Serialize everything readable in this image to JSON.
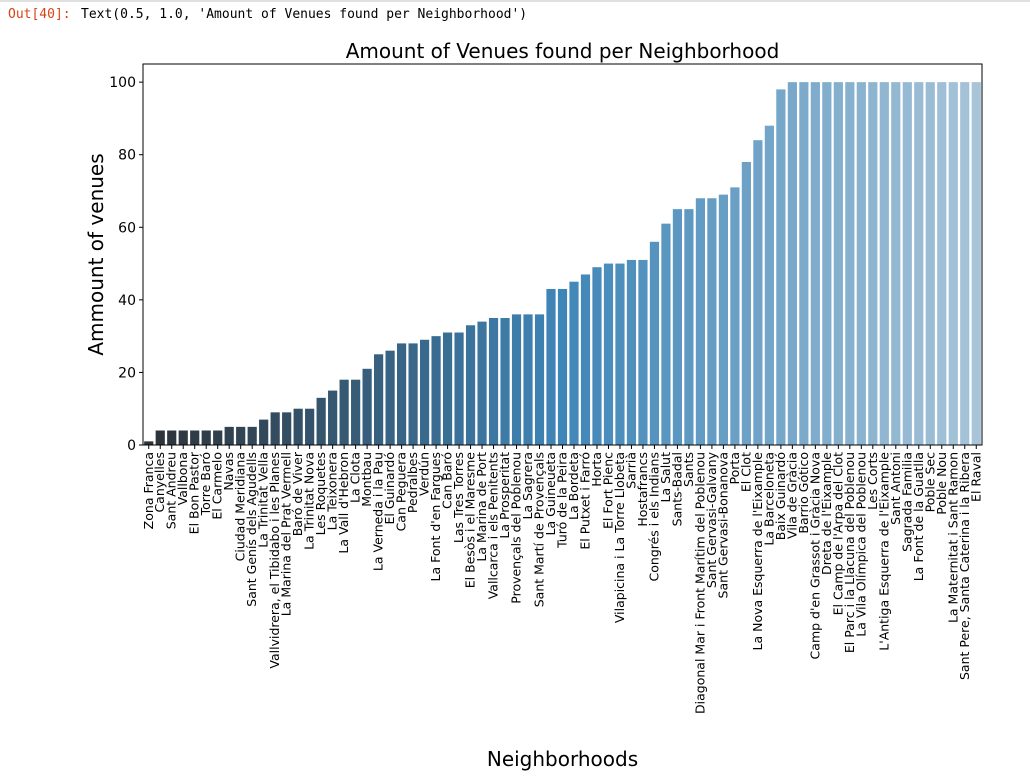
{
  "cell": {
    "prompt": "Out[40]:",
    "output_text": "Text(0.5, 1.0, 'Amount of Venues found per Neighborhood')"
  },
  "chart_data": {
    "type": "bar",
    "title": "Amount of Venues found per Neighborhood",
    "xlabel": "Neighborhoods",
    "ylabel": "Ammount of venues",
    "ylim": [
      0,
      105
    ],
    "yticks": [
      0,
      20,
      40,
      60,
      80,
      100
    ],
    "grid": false,
    "palette_start": "#2d3238",
    "palette_mid": "#3f86b8",
    "palette_end": "#a7c4d8",
    "categories": [
      "Zona Franca",
      "Canyelles",
      "Sant Andreu",
      "Vallbona",
      "El Bon Pastor",
      "Torre Baró",
      "El Carmelo",
      "Navas",
      "Ciudad Meridiana",
      "Sant Genís dels Agudells",
      "La Trinitat Vella",
      "Vallvidrera, el Tibidabo i les Planes",
      "La Marina del Prat Vermell",
      "Baró de Viver",
      "La Trinitat Nova",
      "Les Roquetes",
      "La Teixonera",
      "La Vall d'Hebron",
      "La Clota",
      "Montbau",
      "La Verneda i la Pau",
      "El Guinardó",
      "Can Peguera",
      "Pedralbes",
      "Verdún",
      "La Font d'en Fargues",
      "Can Baró",
      "Las Tres Torres",
      "El Besòs i el Maresme",
      "La Marina de Port",
      "Vallcarca i els Penitents",
      "La Prosperitat",
      "Provençals del Poblenou",
      "La Sagrera",
      "Sant Martí de Provençals",
      "La Guineueta",
      "Turó de la Peira",
      "La Bordeta",
      "El Putxet i Farró",
      "Horta",
      "El Fort Pienc",
      "Vilapicina i La Torre Llobeta",
      "Sarrià",
      "Hostafrancs",
      "Congrés i els Indians",
      "La Salut",
      "Sants-Badal",
      "Sants",
      "Diagonal Mar i Front Marítim del Poblenou",
      "Sant Gervasi-Galvany",
      "Sant Gervasi-Bonanova",
      "Porta",
      "El Clot",
      "La Nova Esquerra de l'Eixample",
      "La Barceloneta",
      "Baix Guinardó",
      "Vila de Gràcia",
      "Barrio Gótico",
      "Camp d'en Grassot i Gràcia Nova",
      "Dreta de l'Eixample",
      "El Camp de l'Arpa del Clot",
      "El Parc i la Llacuna del Poblenou",
      "La Vila Olímpica del Poblenou",
      "Les Corts",
      "L'Antiga Esquerra de l'Eixample",
      "Sant Antoni",
      "Sagrada Familia",
      "La Font de la Guatlla",
      "Poble Sec",
      "Poble Nou",
      "La Maternitat i Sant Ramon",
      "Sant Pere, Santa Caterina i la Ribera",
      "El Raval"
    ],
    "values": [
      1,
      4,
      4,
      4,
      4,
      4,
      4,
      5,
      5,
      5,
      7,
      9,
      9,
      10,
      10,
      13,
      15,
      18,
      18,
      21,
      25,
      26,
      28,
      28,
      29,
      30,
      31,
      31,
      33,
      34,
      35,
      35,
      36,
      36,
      36,
      43,
      43,
      45,
      47,
      49,
      50,
      50,
      51,
      51,
      56,
      61,
      65,
      65,
      68,
      68,
      69,
      71,
      78,
      84,
      88,
      98,
      100,
      100,
      100,
      100,
      100,
      100,
      100,
      100,
      100,
      100,
      100,
      100,
      100,
      100,
      100,
      100,
      100
    ]
  }
}
